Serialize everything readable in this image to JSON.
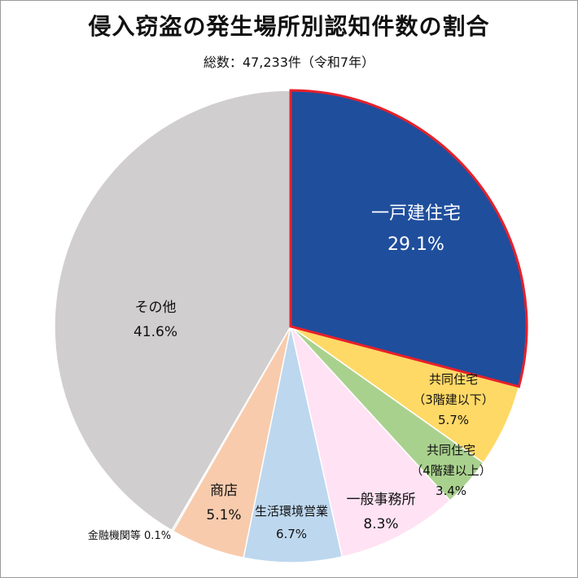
{
  "title": "侵入窃盗の発生場所別認知件数の割合",
  "subtitle": "総数：47,233件（令和7年）",
  "colors": {
    "detached_house": "#1f4e9c",
    "highlight_border": "#e8202a",
    "apartment_3": "#ffd966",
    "apartment_4": "#a9d18e",
    "office": "#ffe2f4",
    "store": "#bdd7ee",
    "shop": "#f8cbad",
    "finance": "#6cc9a0",
    "other": "#d0cece"
  },
  "chart_data": {
    "type": "pie",
    "title": "侵入窃盗の発生場所別認知件数の割合",
    "subtitle": "総数：47,233件（令和7年）",
    "start": "12 o'clock, clockwise",
    "slices": [
      {
        "label": "一戸建住宅",
        "value": 29.1,
        "value_text": "29.1%",
        "color": "#1f4e9c",
        "highlighted": true
      },
      {
        "label": "共同住宅",
        "sublabel": "（3階建以下）",
        "value": 5.7,
        "value_text": "5.7%",
        "color": "#ffd966"
      },
      {
        "label": "共同住宅",
        "sublabel": "（4階建以上）",
        "value": 3.4,
        "value_text": "3.4%",
        "color": "#a9d18e"
      },
      {
        "label": "一般事務所",
        "value": 8.3,
        "value_text": "8.3%",
        "color": "#ffe2f4"
      },
      {
        "label": "生活環境営業",
        "value": 6.7,
        "value_text": "6.7%",
        "color": "#bdd7ee"
      },
      {
        "label": "商店",
        "value": 5.1,
        "value_text": "5.1%",
        "color": "#f8cbad"
      },
      {
        "label": "金融機関等",
        "value": 0.1,
        "value_text": "0.1%",
        "color": "#6cc9a0"
      },
      {
        "label": "その他",
        "value": 41.6,
        "value_text": "41.6%",
        "color": "#d0cece"
      }
    ]
  }
}
